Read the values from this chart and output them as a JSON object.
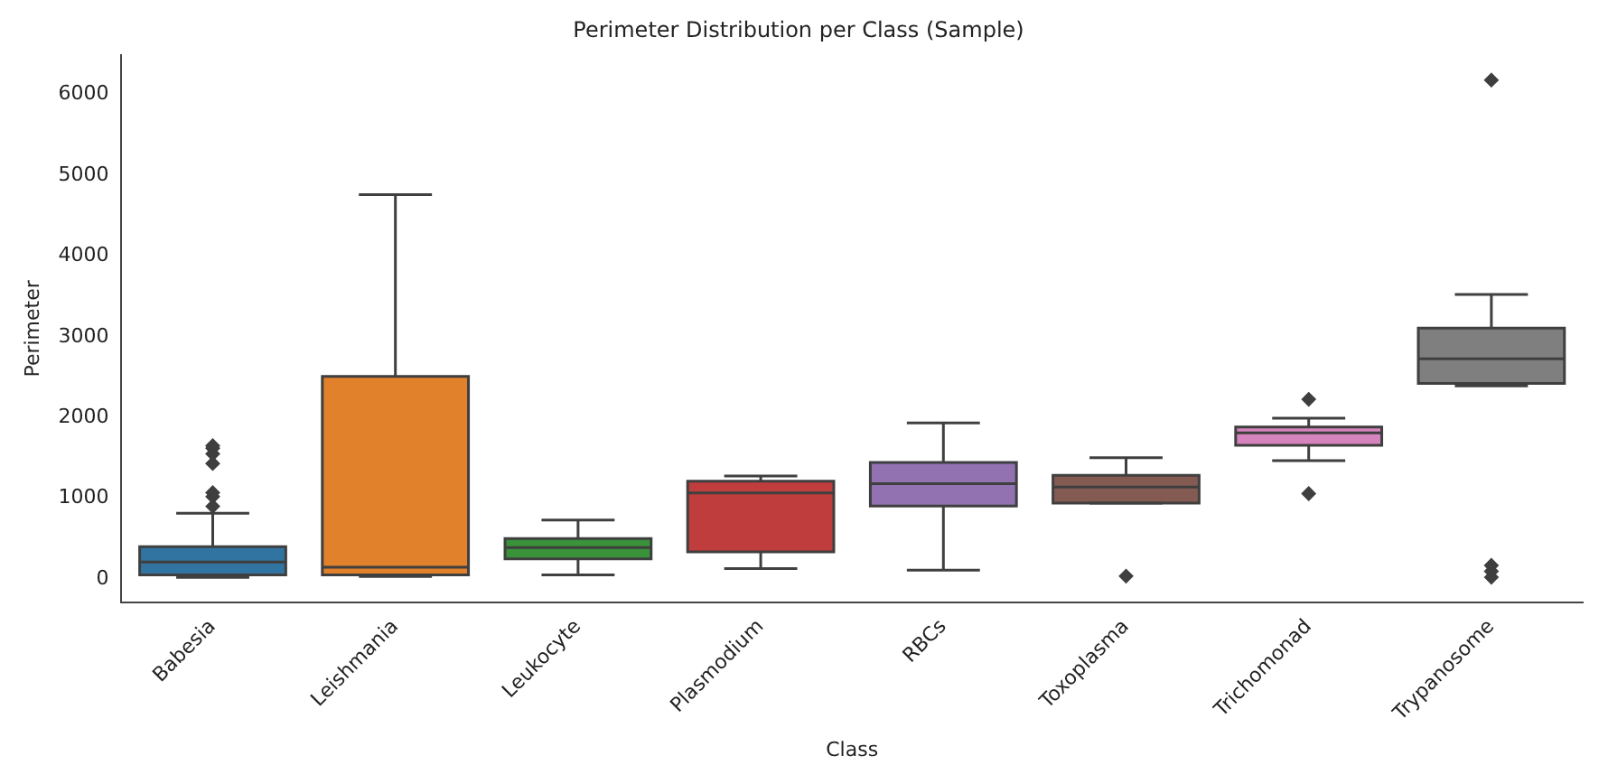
{
  "chart_data": {
    "type": "box",
    "title": "Perimeter Distribution per Class (Sample)",
    "xlabel": "Class",
    "ylabel": "Perimeter",
    "categories": [
      "Babesia",
      "Leishmania",
      "Leukocyte",
      "Plasmodium",
      "RBCs",
      "Toxoplasma",
      "Trichomonad",
      "Trypanosome"
    ],
    "colors": [
      "#3274a1",
      "#e1812c",
      "#3a923a",
      "#c03d3e",
      "#9372b2",
      "#845b53",
      "#d684bd",
      "#7f7f7f"
    ],
    "boxes": [
      {
        "low": 20,
        "q1": 50,
        "median": 210,
        "q3": 400,
        "high": 815,
        "outliers": [
          900,
          1020,
          1070,
          1430,
          1550,
          1620,
          1650
        ]
      },
      {
        "low": 30,
        "q1": 50,
        "median": 145,
        "q3": 2510,
        "high": 4760
      },
      {
        "low": 50,
        "q1": 250,
        "median": 390,
        "q3": 500,
        "high": 730
      },
      {
        "low": 130,
        "q1": 335,
        "median": 1065,
        "q3": 1210,
        "high": 1275
      },
      {
        "low": 110,
        "q1": 904,
        "median": 1182,
        "q3": 1444,
        "high": 1933
      },
      {
        "low": 941,
        "q1": 941,
        "median": 1138,
        "q3": 1284,
        "high": 1503,
        "outliers": [
          36
        ]
      },
      {
        "low": 1466,
        "q1": 1656,
        "median": 1809,
        "q3": 1882,
        "high": 1991,
        "outliers": [
          1058,
          2225
        ]
      },
      {
        "low": 2392,
        "q1": 2422,
        "median": 2728,
        "q3": 3107,
        "high": 3523,
        "outliers": [
          22,
          95,
          168,
          6178
        ]
      }
    ],
    "ylim": [
      -290,
      6490
    ],
    "yticks": [
      0,
      1000,
      2000,
      3000,
      4000,
      5000,
      6000
    ],
    "grid": false,
    "legend": false
  }
}
